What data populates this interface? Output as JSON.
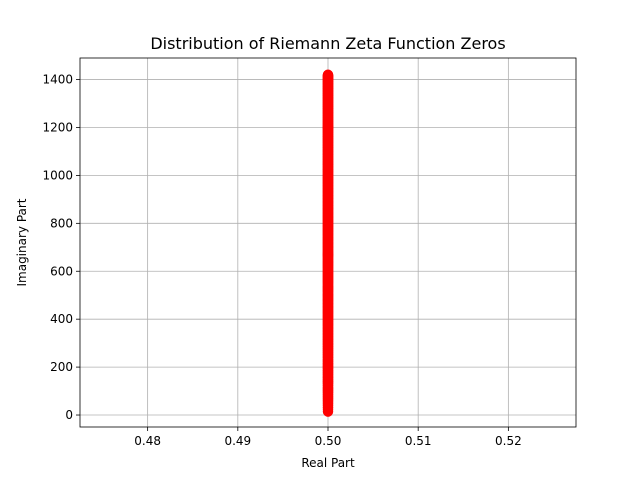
{
  "chart_data": {
    "type": "scatter",
    "title": "Distribution of Riemann Zeta Function Zeros",
    "xlabel": "Real Part",
    "ylabel": "Imaginary Part",
    "xlim": [
      0.4725,
      0.5275
    ],
    "ylim": [
      -50,
      1490
    ],
    "xticks": [
      0.48,
      0.49,
      0.5,
      0.51,
      0.52
    ],
    "xtick_labels": [
      "0.48",
      "0.49",
      "0.50",
      "0.51",
      "0.52"
    ],
    "yticks": [
      0,
      200,
      400,
      600,
      800,
      1000,
      1200,
      1400
    ],
    "ytick_labels": [
      "0",
      "200",
      "400",
      "600",
      "800",
      "1000",
      "1200",
      "1400"
    ],
    "grid": true,
    "series": [
      {
        "color": "#ff0000",
        "x_value": 0.5,
        "imag_parts": [
          14.13,
          21.02,
          25.01,
          30.42,
          32.94,
          37.59,
          40.92,
          43.33,
          48.01,
          49.77,
          52.97,
          56.45,
          59.35,
          60.83,
          65.11,
          67.08,
          69.55,
          72.07,
          75.7,
          77.14,
          79.34,
          82.91,
          84.74,
          87.43,
          88.81,
          92.49,
          94.65,
          95.87,
          98.83,
          101.32,
          103.73,
          105.45,
          107.17,
          111.03,
          111.87,
          114.32,
          116.23,
          118.79,
          121.37,
          122.95,
          124.26,
          127.52,
          129.58,
          131.09,
          133.5,
          134.76,
          138.12,
          139.74,
          141.12,
          143.11,
          146.0,
          147.42,
          150.05,
          150.93,
          153.02,
          156.11,
          157.6,
          158.85,
          161.19,
          163.03,
          165.54,
          167.18,
          169.09,
          169.91,
          173.41,
          174.75,
          176.44,
          178.38,
          179.92,
          182.21,
          184.87,
          185.6,
          187.23,
          189.42,
          192.03,
          193.08,
          195.27,
          196.88,
          198.02,
          201.26,
          202.49,
          204.19,
          205.39,
          207.91,
          209.58,
          211.69,
          213.35,
          214.55,
          216.17,
          219.07,
          220.71,
          221.43,
          224.01,
          224.98,
          227.42,
          229.34,
          231.25,
          231.99,
          233.69,
          236.52
        ]
      }
    ]
  }
}
